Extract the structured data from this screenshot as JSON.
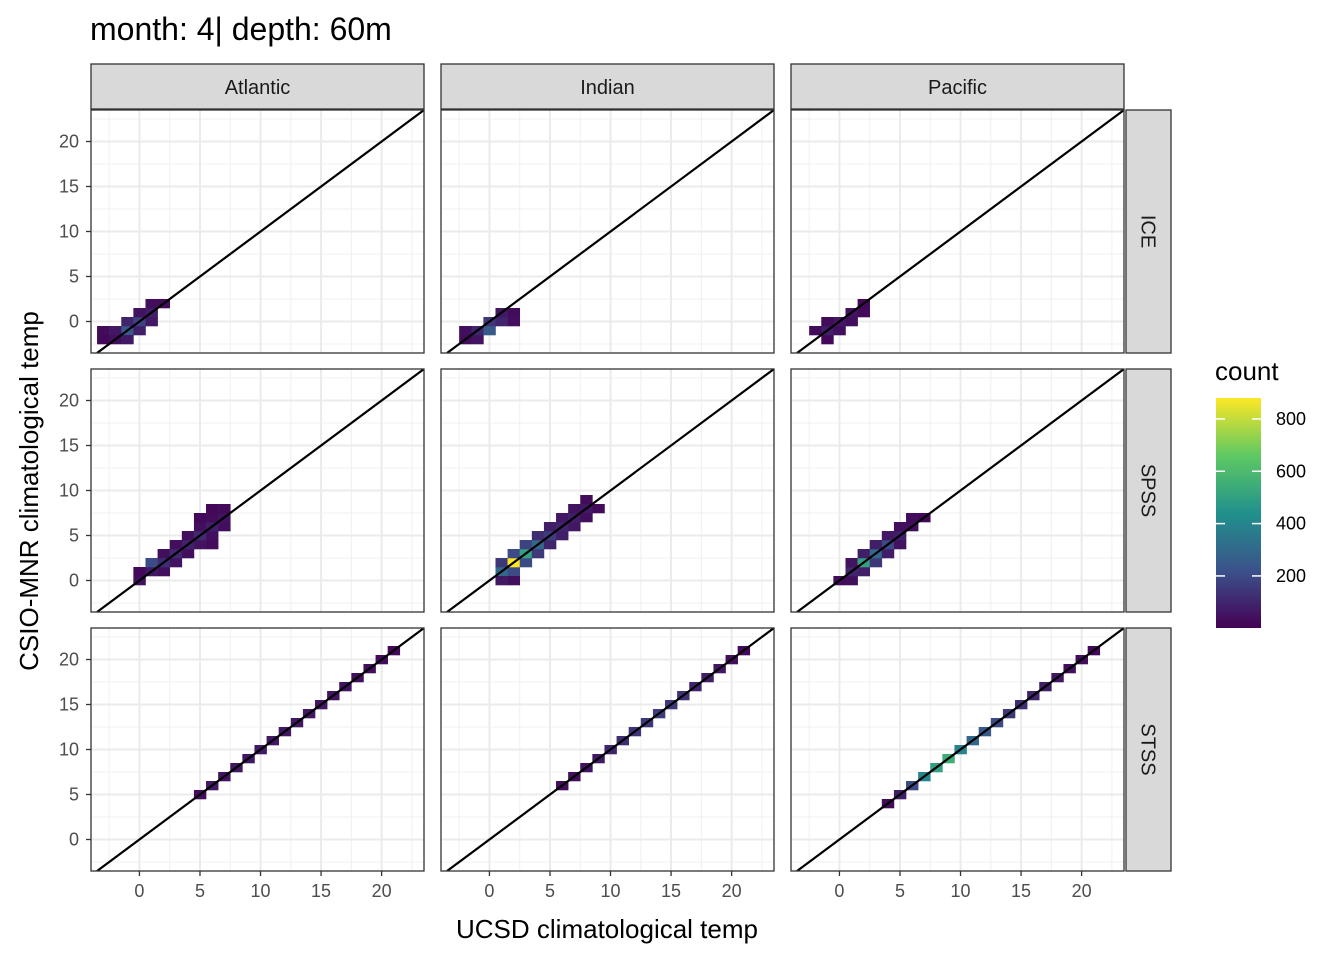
{
  "chart_data": {
    "type": "heatmap",
    "title": "month: 4| depth: 60m",
    "xlabel": "UCSD climatological temp",
    "ylabel": "CSIO-MNR climatological temp",
    "xlim": [
      -4,
      23.5
    ],
    "ylim": [
      -3.5,
      23.5
    ],
    "x_ticks": [
      0,
      5,
      10,
      15,
      20
    ],
    "y_ticks": [
      0,
      5,
      10,
      15,
      20
    ],
    "grid": true,
    "identity_line": true,
    "column_facets": [
      "Atlantic",
      "Indian",
      "Pacific"
    ],
    "row_facets": [
      "ICE",
      "SPSS",
      "STSS"
    ],
    "legend": {
      "title": "count",
      "position": "right",
      "min": 1,
      "max": 880,
      "ticks": [
        200,
        400,
        600,
        800
      ],
      "colors": [
        "#440154",
        "#3b528b",
        "#21918c",
        "#5ec962",
        "#fde725"
      ]
    },
    "panels": [
      {
        "column": "Atlantic",
        "row": "ICE",
        "bins": [
          [
            -3,
            -1,
            30
          ],
          [
            -2,
            -1,
            60
          ],
          [
            -1,
            -1,
            250
          ],
          [
            0,
            -1,
            80
          ],
          [
            -2,
            -2,
            40
          ],
          [
            -1,
            -2,
            70
          ],
          [
            -1,
            0,
            100
          ],
          [
            0,
            0,
            180
          ],
          [
            1,
            0,
            60
          ],
          [
            0,
            1,
            50
          ],
          [
            1,
            1,
            80
          ],
          [
            1,
            2,
            40
          ],
          [
            2,
            2,
            30
          ],
          [
            -3,
            -2,
            20
          ]
        ]
      },
      {
        "column": "Indian",
        "row": "ICE",
        "bins": [
          [
            -2,
            -2,
            30
          ],
          [
            -1,
            -2,
            50
          ],
          [
            -1,
            -1,
            100
          ],
          [
            0,
            -1,
            250
          ],
          [
            0,
            0,
            150
          ],
          [
            1,
            0,
            100
          ],
          [
            1,
            1,
            60
          ],
          [
            2,
            0,
            40
          ],
          [
            2,
            1,
            30
          ],
          [
            -2,
            -1,
            40
          ]
        ]
      },
      {
        "column": "Pacific",
        "row": "ICE",
        "bins": [
          [
            -1,
            -2,
            20
          ],
          [
            -2,
            -1,
            30
          ],
          [
            -1,
            -1,
            80
          ],
          [
            0,
            -1,
            40
          ],
          [
            0,
            0,
            60
          ],
          [
            1,
            0,
            40
          ],
          [
            1,
            1,
            50
          ],
          [
            2,
            1,
            30
          ],
          [
            2,
            2,
            20
          ],
          [
            -1,
            0,
            30
          ]
        ]
      },
      {
        "column": "Atlantic",
        "row": "SPSS",
        "bins": [
          [
            0,
            0,
            40
          ],
          [
            0,
            1,
            20
          ],
          [
            1,
            1,
            60
          ],
          [
            1,
            2,
            200
          ],
          [
            2,
            1,
            40
          ],
          [
            2,
            2,
            120
          ],
          [
            2,
            3,
            40
          ],
          [
            3,
            2,
            50
          ],
          [
            3,
            3,
            110
          ],
          [
            3,
            4,
            40
          ],
          [
            4,
            3,
            40
          ],
          [
            4,
            4,
            90
          ],
          [
            4,
            5,
            40
          ],
          [
            5,
            4,
            50
          ],
          [
            5,
            5,
            110
          ],
          [
            5,
            6,
            40
          ],
          [
            6,
            4,
            30
          ],
          [
            6,
            5,
            40
          ],
          [
            6,
            6,
            80
          ],
          [
            6,
            7,
            30
          ],
          [
            7,
            6,
            40
          ],
          [
            7,
            7,
            50
          ],
          [
            7,
            8,
            30
          ],
          [
            5,
            7,
            20
          ],
          [
            6,
            8,
            20
          ]
        ]
      },
      {
        "column": "Indian",
        "row": "SPSS",
        "bins": [
          [
            1,
            1,
            300
          ],
          [
            1,
            2,
            150
          ],
          [
            2,
            1,
            200
          ],
          [
            2,
            2,
            880
          ],
          [
            2,
            3,
            200
          ],
          [
            1,
            0,
            60
          ],
          [
            2,
            0,
            40
          ],
          [
            3,
            2,
            200
          ],
          [
            3,
            3,
            500
          ],
          [
            3,
            4,
            180
          ],
          [
            4,
            3,
            150
          ],
          [
            4,
            4,
            300
          ],
          [
            4,
            5,
            120
          ],
          [
            5,
            4,
            100
          ],
          [
            5,
            5,
            160
          ],
          [
            5,
            6,
            80
          ],
          [
            6,
            5,
            80
          ],
          [
            6,
            6,
            100
          ],
          [
            6,
            7,
            60
          ],
          [
            7,
            6,
            60
          ],
          [
            7,
            7,
            80
          ],
          [
            7,
            8,
            50
          ],
          [
            8,
            7,
            40
          ],
          [
            8,
            8,
            60
          ],
          [
            8,
            9,
            30
          ],
          [
            9,
            8,
            30
          ]
        ]
      },
      {
        "column": "Pacific",
        "row": "SPSS",
        "bins": [
          [
            0,
            0,
            30
          ],
          [
            1,
            0,
            40
          ],
          [
            1,
            1,
            100
          ],
          [
            1,
            2,
            50
          ],
          [
            2,
            1,
            80
          ],
          [
            2,
            2,
            500
          ],
          [
            2,
            3,
            80
          ],
          [
            3,
            2,
            150
          ],
          [
            3,
            3,
            300
          ],
          [
            3,
            4,
            80
          ],
          [
            4,
            3,
            80
          ],
          [
            4,
            4,
            200
          ],
          [
            4,
            5,
            60
          ],
          [
            5,
            4,
            50
          ],
          [
            5,
            5,
            80
          ],
          [
            5,
            6,
            40
          ],
          [
            6,
            6,
            40
          ],
          [
            6,
            7,
            30
          ],
          [
            7,
            7,
            20
          ]
        ]
      },
      {
        "column": "Atlantic",
        "row": "STSS",
        "bins": [
          [
            5,
            5,
            30
          ],
          [
            6,
            6,
            60
          ],
          [
            7,
            7,
            50
          ],
          [
            8,
            8,
            60
          ],
          [
            9,
            9,
            60
          ],
          [
            10,
            10,
            70
          ],
          [
            11,
            11,
            60
          ],
          [
            12,
            12,
            60
          ],
          [
            13,
            13,
            60
          ],
          [
            14,
            14,
            60
          ],
          [
            15,
            15,
            60
          ],
          [
            16,
            16,
            50
          ],
          [
            17,
            17,
            50
          ],
          [
            18,
            18,
            40
          ],
          [
            19,
            19,
            40
          ],
          [
            20,
            20,
            30
          ],
          [
            21,
            21,
            20
          ]
        ]
      },
      {
        "column": "Indian",
        "row": "STSS",
        "bins": [
          [
            6,
            6,
            30
          ],
          [
            7,
            7,
            40
          ],
          [
            8,
            8,
            50
          ],
          [
            9,
            9,
            70
          ],
          [
            10,
            10,
            100
          ],
          [
            11,
            11,
            120
          ],
          [
            12,
            12,
            140
          ],
          [
            13,
            13,
            150
          ],
          [
            14,
            14,
            160
          ],
          [
            15,
            15,
            150
          ],
          [
            16,
            16,
            130
          ],
          [
            17,
            17,
            100
          ],
          [
            18,
            18,
            80
          ],
          [
            19,
            19,
            60
          ],
          [
            20,
            20,
            40
          ],
          [
            21,
            21,
            20
          ]
        ]
      },
      {
        "column": "Pacific",
        "row": "STSS",
        "bins": [
          [
            4,
            4,
            30
          ],
          [
            5,
            5,
            80
          ],
          [
            6,
            6,
            200
          ],
          [
            7,
            7,
            400
          ],
          [
            8,
            8,
            500
          ],
          [
            9,
            9,
            550
          ],
          [
            10,
            10,
            400
          ],
          [
            11,
            11,
            300
          ],
          [
            12,
            12,
            250
          ],
          [
            13,
            13,
            200
          ],
          [
            14,
            14,
            150
          ],
          [
            15,
            15,
            120
          ],
          [
            16,
            16,
            100
          ],
          [
            17,
            17,
            80
          ],
          [
            18,
            18,
            60
          ],
          [
            19,
            19,
            40
          ],
          [
            20,
            20,
            30
          ],
          [
            21,
            21,
            20
          ]
        ]
      }
    ]
  }
}
